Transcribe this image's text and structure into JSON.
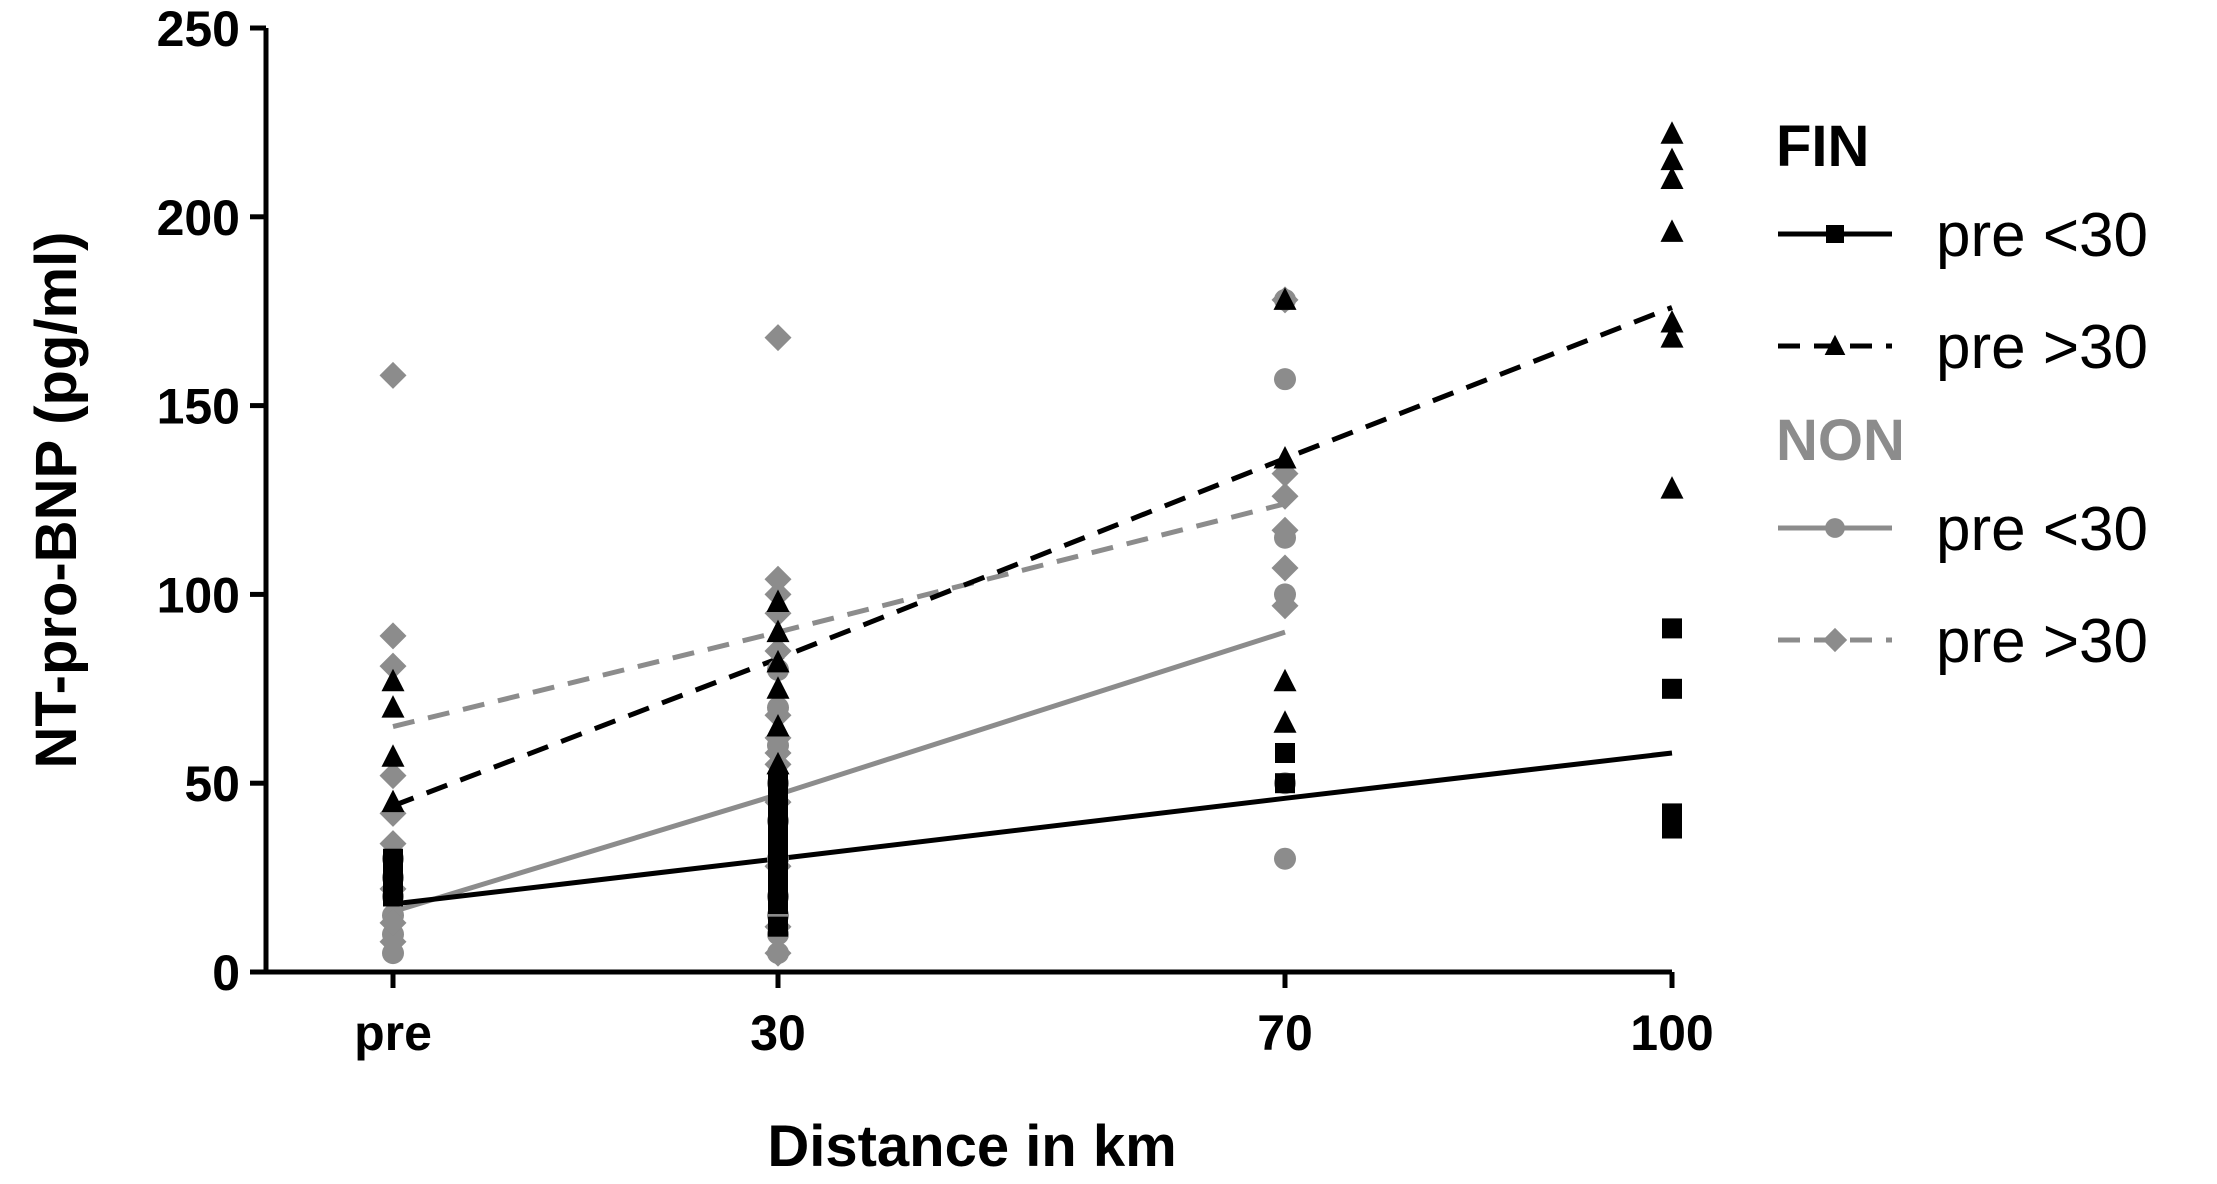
{
  "chart_data": {
    "type": "scatter",
    "title": "",
    "xlabel": "Distance in km",
    "ylabel": "NT-pro-BNP (pg/ml)",
    "categories": [
      "pre",
      "30",
      "70",
      "100"
    ],
    "x": [
      0,
      30,
      70,
      100
    ],
    "ylim": [
      0,
      250
    ],
    "yticks": [
      0,
      50,
      100,
      150,
      200,
      250
    ],
    "grid": false,
    "legend": {
      "placement": "right",
      "groups": [
        {
          "label": "FIN",
          "color": "#000000",
          "entries": [
            "pre <30",
            "pre >30"
          ]
        },
        {
          "label": "NON",
          "color": "#8c8c8c",
          "entries": [
            "pre <30",
            "pre >30"
          ]
        }
      ]
    },
    "series": [
      {
        "group": "FIN",
        "name": "pre <30",
        "color": "#000000",
        "marker": "square",
        "line": "solid",
        "trend": [
          18,
          30,
          46,
          58
        ],
        "points": [
          [
            0,
            20
          ],
          [
            0,
            25
          ],
          [
            0,
            30
          ],
          [
            30,
            12
          ],
          [
            30,
            18
          ],
          [
            30,
            22
          ],
          [
            30,
            25
          ],
          [
            30,
            28
          ],
          [
            30,
            32
          ],
          [
            30,
            35
          ],
          [
            30,
            38
          ],
          [
            30,
            42
          ],
          [
            30,
            46
          ],
          [
            30,
            50
          ],
          [
            70,
            50
          ],
          [
            70,
            58
          ],
          [
            100,
            38
          ],
          [
            100,
            42
          ],
          [
            100,
            75
          ],
          [
            100,
            91
          ]
        ]
      },
      {
        "group": "FIN",
        "name": "pre >30",
        "color": "#000000",
        "marker": "triangle",
        "line": "dashed",
        "trend": [
          44,
          83,
          136,
          176
        ],
        "points": [
          [
            0,
            45
          ],
          [
            0,
            57
          ],
          [
            0,
            70
          ],
          [
            0,
            77
          ],
          [
            30,
            55
          ],
          [
            30,
            65
          ],
          [
            30,
            75
          ],
          [
            30,
            82
          ],
          [
            30,
            90
          ],
          [
            30,
            98
          ],
          [
            70,
            66
          ],
          [
            70,
            77
          ],
          [
            70,
            136
          ],
          [
            70,
            178
          ],
          [
            100,
            128
          ],
          [
            100,
            168
          ],
          [
            100,
            172
          ],
          [
            100,
            196
          ],
          [
            100,
            210
          ],
          [
            100,
            215
          ],
          [
            100,
            222
          ]
        ]
      },
      {
        "group": "NON",
        "name": "pre <30",
        "color": "#8c8c8c",
        "marker": "circle",
        "line": "solid",
        "trend": [
          16,
          47,
          90
        ],
        "points": [
          [
            0,
            5
          ],
          [
            0,
            10
          ],
          [
            0,
            15
          ],
          [
            0,
            20
          ],
          [
            0,
            25
          ],
          [
            0,
            30
          ],
          [
            30,
            5
          ],
          [
            30,
            10
          ],
          [
            30,
            15
          ],
          [
            30,
            20
          ],
          [
            30,
            30
          ],
          [
            30,
            40
          ],
          [
            30,
            50
          ],
          [
            30,
            60
          ],
          [
            30,
            70
          ],
          [
            30,
            80
          ],
          [
            70,
            30
          ],
          [
            70,
            50
          ],
          [
            70,
            100
          ],
          [
            70,
            115
          ],
          [
            70,
            157
          ],
          [
            70,
            178
          ]
        ]
      },
      {
        "group": "NON",
        "name": "pre >30",
        "color": "#8c8c8c",
        "marker": "diamond",
        "line": "dashed",
        "trend": [
          65,
          90,
          124
        ],
        "points": [
          [
            0,
            8
          ],
          [
            0,
            13
          ],
          [
            0,
            22
          ],
          [
            0,
            34
          ],
          [
            0,
            42
          ],
          [
            0,
            52
          ],
          [
            0,
            81
          ],
          [
            0,
            89
          ],
          [
            0,
            158
          ],
          [
            30,
            5
          ],
          [
            30,
            12
          ],
          [
            30,
            28
          ],
          [
            30,
            45
          ],
          [
            30,
            55
          ],
          [
            30,
            58
          ],
          [
            30,
            62
          ],
          [
            30,
            68
          ],
          [
            30,
            85
          ],
          [
            30,
            95
          ],
          [
            30,
            100
          ],
          [
            30,
            104
          ],
          [
            30,
            168
          ],
          [
            70,
            97
          ],
          [
            70,
            107
          ],
          [
            70,
            117
          ],
          [
            70,
            126
          ],
          [
            70,
            132
          ],
          [
            70,
            178
          ]
        ]
      }
    ]
  }
}
